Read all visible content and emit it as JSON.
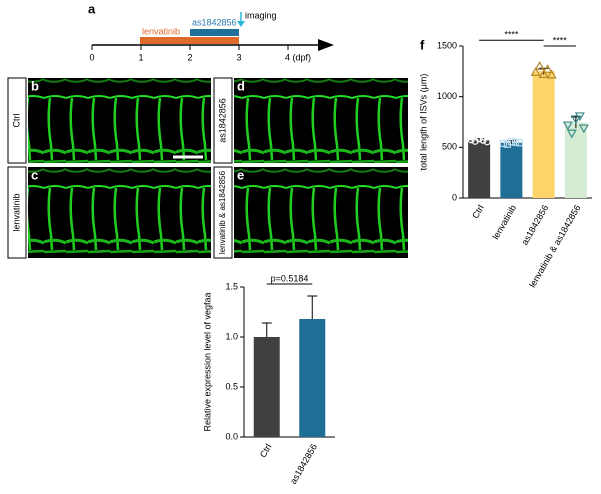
{
  "timeline": {
    "label": "a",
    "ticks": [
      "0",
      "1",
      "2",
      "3",
      "4 (dpf)"
    ],
    "treatment_1": "lenvatinib",
    "treatment_2": "as1842856",
    "event": "imaging"
  },
  "panels": [
    {
      "label": "b",
      "condition": "Ctrl"
    },
    {
      "label": "c",
      "condition": "lenvatinib"
    },
    {
      "label": "d",
      "condition": "as1842856"
    },
    {
      "label": "e",
      "condition": "lenvatinib & as1842856"
    }
  ],
  "chart_data": [
    {
      "type": "bar",
      "panel_label": "f",
      "ylabel": "total length of ISVs (μm)",
      "categories": [
        "Ctrl",
        "lenvatinib",
        "as1842856",
        "lenvatinib & as1842856"
      ],
      "values": [
        570,
        545,
        1250,
        745
      ],
      "errors": [
        15,
        20,
        30,
        55
      ],
      "points": [
        [
          575,
          560,
          585,
          570,
          555
        ],
        [
          540,
          530,
          555,
          550,
          545
        ],
        [
          1240,
          1300,
          1220,
          1270,
          1215
        ],
        [
          720,
          640,
          780,
          810,
          690
        ]
      ],
      "colors": [
        "#404040",
        "#1f6e96",
        "#fcd468",
        "#d5ecd4"
      ],
      "point_colors": [
        "#ffffff",
        "#bcdcee",
        "#b8862c",
        "#3a8a8a"
      ],
      "markers": [
        "circle",
        "square",
        "triangle-up",
        "triangle-down"
      ],
      "ylim": [
        0,
        1500
      ],
      "yticks": [
        0,
        500,
        1000,
        1500
      ],
      "annotations": [
        {
          "text": "****",
          "between": [
            "Ctrl",
            "as1842856"
          ]
        },
        {
          "text": "****",
          "between": [
            "as1842856",
            "lenvatinib & as1842856"
          ]
        }
      ]
    },
    {
      "type": "bar",
      "ylabel": "Relative expression level of vegfaa",
      "categories": [
        "Ctrl",
        "as1842856"
      ],
      "values": [
        1.0,
        1.18
      ],
      "errors": [
        0.14,
        0.23
      ],
      "colors": [
        "#404040",
        "#1f6e96"
      ],
      "ylim": [
        0,
        1.5
      ],
      "yticks": [
        {
          "value": 0,
          "label": "0.0"
        },
        {
          "value": 0.5,
          "label": "0.5"
        },
        {
          "value": 1,
          "label": "1.0"
        },
        {
          "value": 1.5,
          "label": "1.5"
        }
      ],
      "annotations": [
        {
          "text": "p=0.5184",
          "between": [
            "Ctrl",
            "as1842856"
          ]
        }
      ]
    }
  ]
}
